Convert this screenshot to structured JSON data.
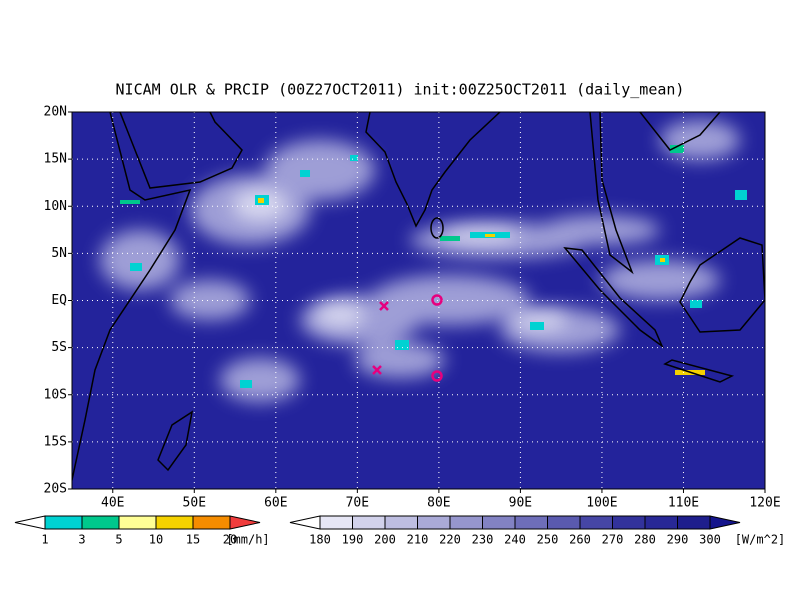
{
  "title": "NICAM OLR & PRCIP (00Z27OCT2011) init:00Z25OCT2011 (daily_mean)",
  "map": {
    "lat_labels": [
      "20N",
      "15N",
      "10N",
      "5N",
      "EQ",
      "5S",
      "10S",
      "15S",
      "20S"
    ],
    "lon_labels": [
      "40E",
      "50E",
      "60E",
      "70E",
      "80E",
      "90E",
      "100E",
      "110E",
      "120E"
    ]
  },
  "precip_colorbar": {
    "labels": [
      1,
      3,
      5,
      10,
      15,
      20
    ],
    "unit": "[mm/h]",
    "colors": [
      "#ffffff",
      "#00d2d2",
      "#00c88c",
      "#ffff96",
      "#f5d200",
      "#f58c00",
      "#f03c3c"
    ]
  },
  "olr_colorbar": {
    "labels": [
      180,
      190,
      200,
      210,
      220,
      230,
      240,
      250,
      260,
      270,
      280,
      290,
      300
    ],
    "unit": "[W/m^2]",
    "colors": [
      "#ffffff",
      "#e6e6f5",
      "#d2d2eb",
      "#bebee1",
      "#aaaad7",
      "#9696cd",
      "#8282c3",
      "#6e6eb9",
      "#5a5aaf",
      "#4646a5",
      "#32329b",
      "#282896",
      "#1e1e8c",
      "#14148c"
    ]
  }
}
